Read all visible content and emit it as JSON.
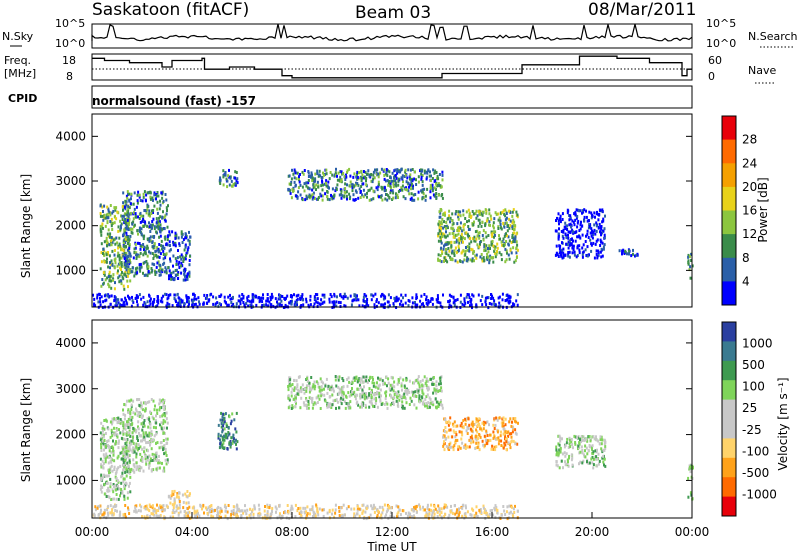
{
  "header": {
    "station": "Saskatoon (fitACF)",
    "beam": "Beam 03",
    "date": "08/Mar/2011",
    "cpid_label": "CPID",
    "cpid_value": "normalsound (fast) -157"
  },
  "strip_noise": {
    "left_label": "N.Sky",
    "right_label": "N.Search",
    "left_ticks": [
      "10^5",
      "10^0"
    ],
    "right_ticks": [
      "10^5",
      "10^0"
    ]
  },
  "strip_freq": {
    "left_label_1": "Freq.",
    "left_label_2": "[MHz]",
    "right_label": "Nave",
    "left_ticks": [
      "18",
      "8"
    ],
    "right_ticks": [
      "60",
      "0"
    ],
    "freq_steps": [
      [
        0,
        17
      ],
      [
        0.5,
        16
      ],
      [
        1.5,
        15
      ],
      [
        2.8,
        13
      ],
      [
        3.2,
        16
      ],
      [
        4.4,
        17
      ],
      [
        4.5,
        12
      ],
      [
        5.5,
        13
      ],
      [
        6.5,
        12
      ],
      [
        7.6,
        9
      ],
      [
        8,
        8
      ],
      [
        14,
        10
      ],
      [
        17.2,
        14
      ],
      [
        19.5,
        18
      ],
      [
        21,
        17
      ],
      [
        22.3,
        15
      ],
      [
        23.6,
        9
      ],
      [
        23.8,
        12
      ]
    ]
  },
  "chart_data": [
    {
      "type": "heatmap",
      "title": "Power [dB]",
      "ylabel": "Slant Range [km]",
      "ylim": [
        180,
        4500
      ],
      "xlim": [
        0,
        24
      ],
      "yticks": [
        "1000",
        "2000",
        "3000",
        "4000"
      ],
      "colorbar": {
        "label": "Power [dB]",
        "ticks": [
          "28",
          "24",
          "20",
          "16",
          "12",
          "8",
          "4"
        ],
        "colors": [
          "#e8000a",
          "#ff6a00",
          "#f5a000",
          "#e8d21a",
          "#8cc63f",
          "#3a8c4a",
          "#2a5fa8",
          "#0000ff"
        ]
      },
      "blobs": [
        {
          "x": [
            0.3,
            1.5
          ],
          "y": [
            600,
            2500
          ],
          "level": 3
        },
        {
          "x": [
            1.2,
            3.0
          ],
          "y": [
            900,
            2800
          ],
          "level": 2
        },
        {
          "x": [
            3.0,
            3.9
          ],
          "y": [
            800,
            1900
          ],
          "level": 1
        },
        {
          "x": [
            5.0,
            5.8
          ],
          "y": [
            2900,
            3300
          ],
          "level": 2
        },
        {
          "x": [
            7.8,
            14.0
          ],
          "y": [
            2600,
            3300
          ],
          "level": 2
        },
        {
          "x": [
            13.8,
            17.0
          ],
          "y": [
            1200,
            2400
          ],
          "level": 3
        },
        {
          "x": [
            18.5,
            20.5
          ],
          "y": [
            1300,
            2400
          ],
          "level": 0
        },
        {
          "x": [
            21.0,
            21.8
          ],
          "y": [
            1300,
            1500
          ],
          "level": 1
        },
        {
          "x": [
            23.8,
            24.0
          ],
          "y": [
            800,
            1400
          ],
          "level": 3
        },
        {
          "x": [
            0.0,
            17.0
          ],
          "y": [
            200,
            500
          ],
          "level": 0
        }
      ]
    },
    {
      "type": "heatmap",
      "title": "Velocity [m s-1]",
      "ylabel": "Slant Range [km]",
      "xlabel": "Time UT",
      "ylim": [
        180,
        4500
      ],
      "xlim": [
        0,
        24
      ],
      "yticks": [
        "1000",
        "2000",
        "3000",
        "4000"
      ],
      "xticks": [
        "00:00",
        "04:00",
        "08:00",
        "12:00",
        "16:00",
        "20:00",
        "00:00"
      ],
      "colorbar": {
        "label": "Velocity [m s⁻¹]",
        "ticks": [
          "1000",
          "500",
          "100",
          "25",
          "-25",
          "-100",
          "-500",
          "-1000"
        ],
        "colors": [
          "#2a3fa0",
          "#3a7a90",
          "#3e9a50",
          "#7fd45a",
          "#c8c8c8",
          "#c8c8c8",
          "#ffd36a",
          "#ffa21a",
          "#ff6a00",
          "#e8000a"
        ]
      },
      "blobs": [
        {
          "x": [
            0.3,
            1.5
          ],
          "y": [
            600,
            2400
          ],
          "level": 4
        },
        {
          "x": [
            1.2,
            3.0
          ],
          "y": [
            1200,
            2800
          ],
          "level": 4
        },
        {
          "x": [
            3.0,
            3.9
          ],
          "y": [
            500,
            800
          ],
          "level": 6
        },
        {
          "x": [
            5.0,
            5.8
          ],
          "y": [
            1700,
            2500
          ],
          "level": 2
        },
        {
          "x": [
            7.8,
            14.0
          ],
          "y": [
            2600,
            3300
          ],
          "level": 4
        },
        {
          "x": [
            14.0,
            17.0
          ],
          "y": [
            1700,
            2400
          ],
          "level": 7
        },
        {
          "x": [
            18.5,
            20.5
          ],
          "y": [
            1300,
            2000
          ],
          "level": 4
        },
        {
          "x": [
            23.8,
            24.0
          ],
          "y": [
            600,
            1400
          ],
          "level": 4
        },
        {
          "x": [
            0.0,
            17.0
          ],
          "y": [
            200,
            500
          ],
          "level": 6
        }
      ]
    }
  ]
}
